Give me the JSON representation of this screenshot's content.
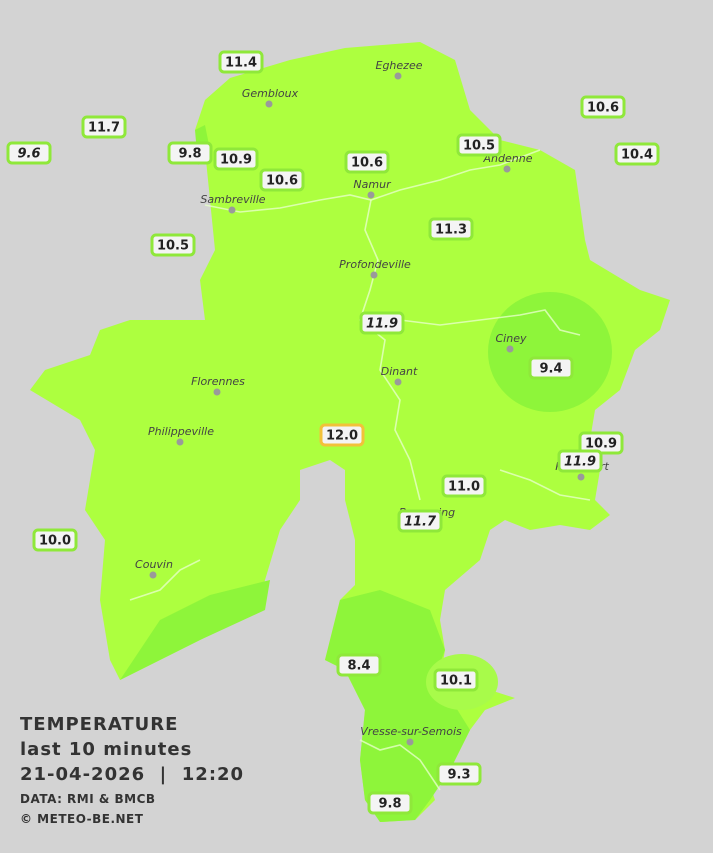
{
  "towns": [
    "Eghezee",
    "Gembloux",
    "Andenne",
    "Namur",
    "Sambreville",
    "Profondeville",
    "Ciney",
    "Dinant",
    "Florennes",
    "Philippeville",
    "Rochefort",
    "Beauraing",
    "Couvin",
    "Vresse-sur-Semois"
  ],
  "stations": [
    {
      "value": "11.4"
    },
    {
      "value": "11.7"
    },
    {
      "value": "9.6",
      "italic": true
    },
    {
      "value": "9.8"
    },
    {
      "value": "10.9"
    },
    {
      "value": "10.6"
    },
    {
      "value": "10.6"
    },
    {
      "value": "10.5"
    },
    {
      "value": "10.6"
    },
    {
      "value": "10.4"
    },
    {
      "value": "10.5"
    },
    {
      "value": "11.3"
    },
    {
      "value": "11.9",
      "italic": true
    },
    {
      "value": "9.4"
    },
    {
      "value": "12.0",
      "border": "#f2c13a"
    },
    {
      "value": "10.9"
    },
    {
      "value": "11.9",
      "italic": true
    },
    {
      "value": "11.0"
    },
    {
      "value": "11.7",
      "italic": true
    },
    {
      "value": "10.0"
    },
    {
      "value": "8.4"
    },
    {
      "value": "10.1"
    },
    {
      "value": "9.3"
    },
    {
      "value": "9.8"
    }
  ],
  "legend": {
    "title": "TEMPERATURE",
    "period": "last 10 minutes",
    "datetime": "21-04-2026  |  12:20",
    "source": "DATA: RMI & BMCB",
    "copyright": "© METEO-BE.NET"
  }
}
